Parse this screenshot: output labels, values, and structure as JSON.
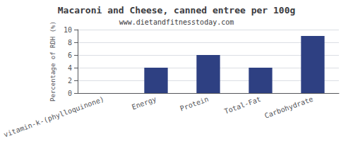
{
  "chart_data": {
    "type": "bar",
    "title": "Macaroni and Cheese, canned entree per 100g",
    "subtitle": "www.dietandfitnesstoday.com",
    "categories": [
      "vitamin-k-(phylloquinone)",
      "Energy",
      "Protein",
      "Total-Fat",
      "Carbohydrate"
    ],
    "values": [
      0,
      4,
      6,
      4,
      9
    ],
    "color": "#2e4082",
    "ylabel": "Percentage of RDH (%)",
    "ylim": [
      0,
      10
    ],
    "yticks": [
      0,
      2,
      4,
      6,
      8,
      10
    ],
    "grid": true
  }
}
